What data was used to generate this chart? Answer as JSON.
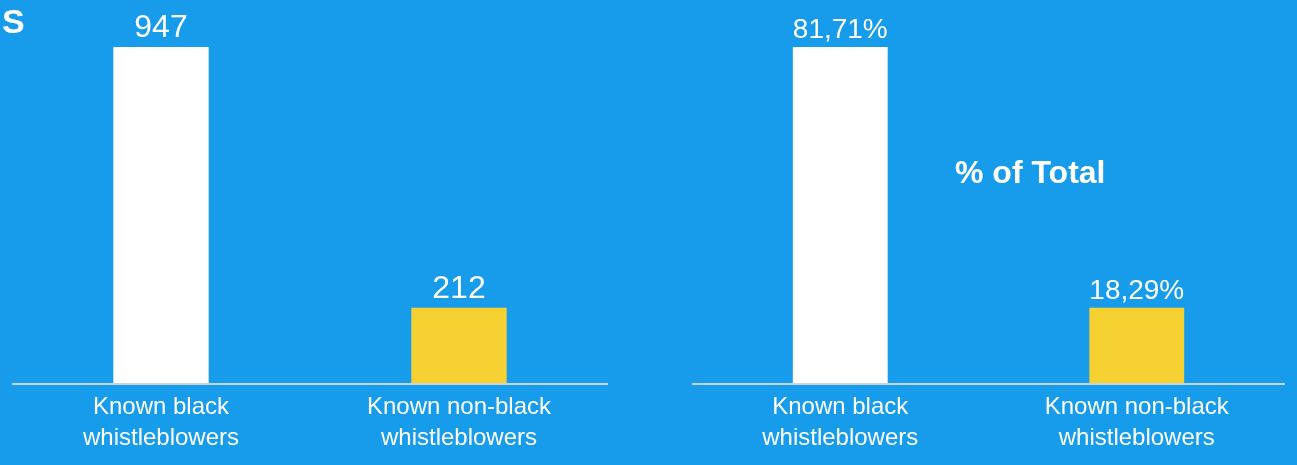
{
  "chart_data": [
    {
      "type": "bar",
      "title": "S",
      "categories": [
        "Known black\nwhistleblowers",
        "Known non-black\nwhistleblowers"
      ],
      "colors": [
        "#ffffff",
        "#f5d132"
      ],
      "values": [
        947,
        212
      ],
      "data_labels": true
    },
    {
      "type": "bar",
      "annotations": [
        "% of Total"
      ],
      "categories": [
        "Known black\nwhistleblowers",
        "Known non-black\nwhistleblowers"
      ],
      "colors": [
        "#ffffff",
        "#f5d132"
      ],
      "values": [
        81.71,
        18.29
      ],
      "value_labels": [
        "81,71%",
        "18,29%"
      ]
    }
  ]
}
